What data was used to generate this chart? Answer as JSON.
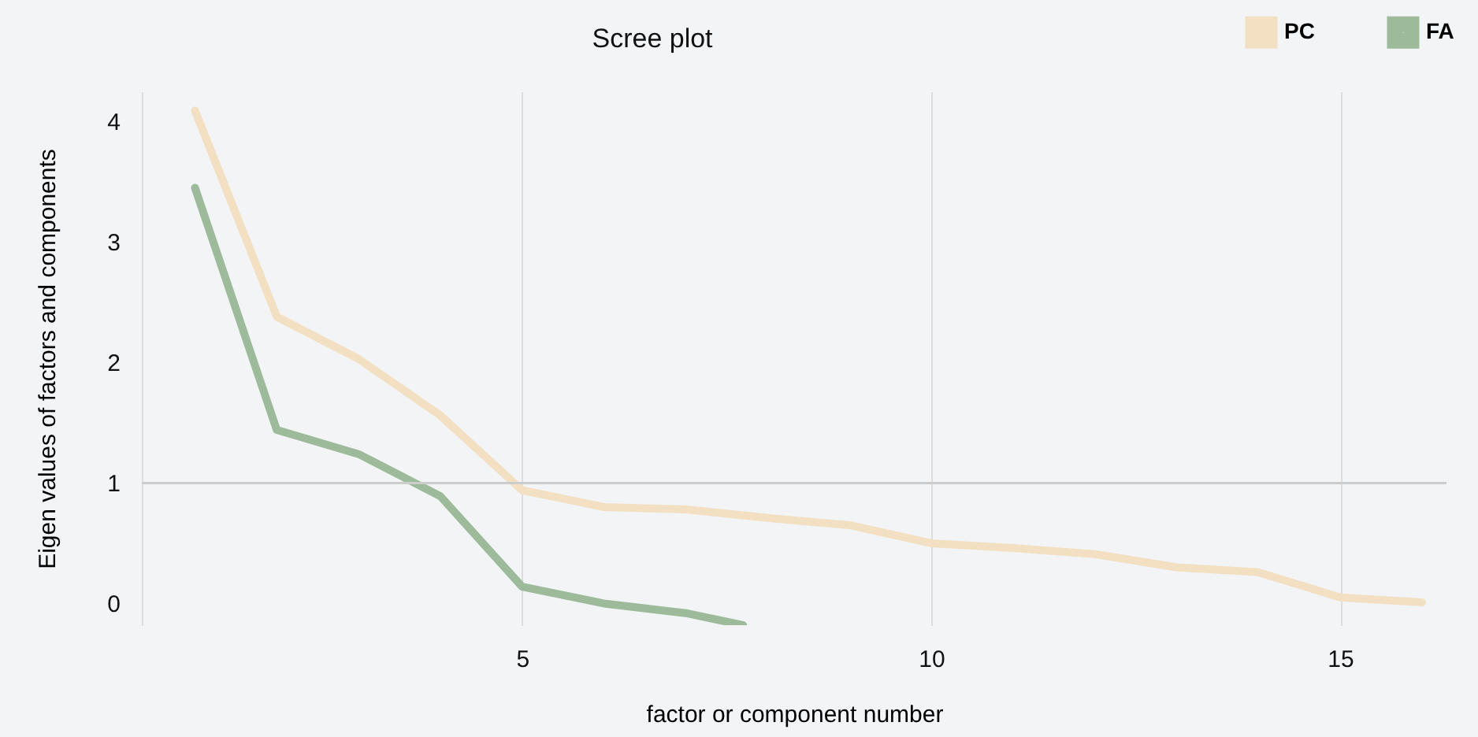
{
  "chart_data": {
    "type": "line",
    "title": "Scree plot",
    "xlabel": "factor or component number",
    "ylabel": "Eigen values of factors and components",
    "xlim": [
      0.35,
      16.3
    ],
    "xticks": [
      5,
      10,
      15
    ],
    "ylim": [
      -0.18,
      4.25
    ],
    "yticks": [
      0,
      1,
      2,
      3,
      4
    ],
    "grid": "x",
    "legend": "top right",
    "line_style": "solid",
    "marker": "none",
    "ref_lines": [
      {
        "axis": "y",
        "value": 1,
        "color": "#cccccc"
      }
    ],
    "series": [
      {
        "name": "PC",
        "color": "#f3dfc1",
        "x": [
          1,
          2,
          3,
          4,
          5,
          6,
          7,
          8,
          9,
          10,
          11,
          12,
          13,
          14,
          15,
          16
        ],
        "values": [
          4.09,
          2.38,
          2.03,
          1.56,
          0.94,
          0.8,
          0.78,
          0.71,
          0.65,
          0.5,
          0.46,
          0.41,
          0.3,
          0.26,
          0.05,
          0.01
        ]
      },
      {
        "name": "FA",
        "color": "#9dbb9a",
        "x": [
          1,
          2,
          3,
          4,
          5,
          6,
          7,
          7.7
        ],
        "values": [
          3.45,
          1.44,
          1.24,
          0.89,
          0.14,
          0.0,
          -0.08,
          -0.18
        ]
      }
    ]
  }
}
